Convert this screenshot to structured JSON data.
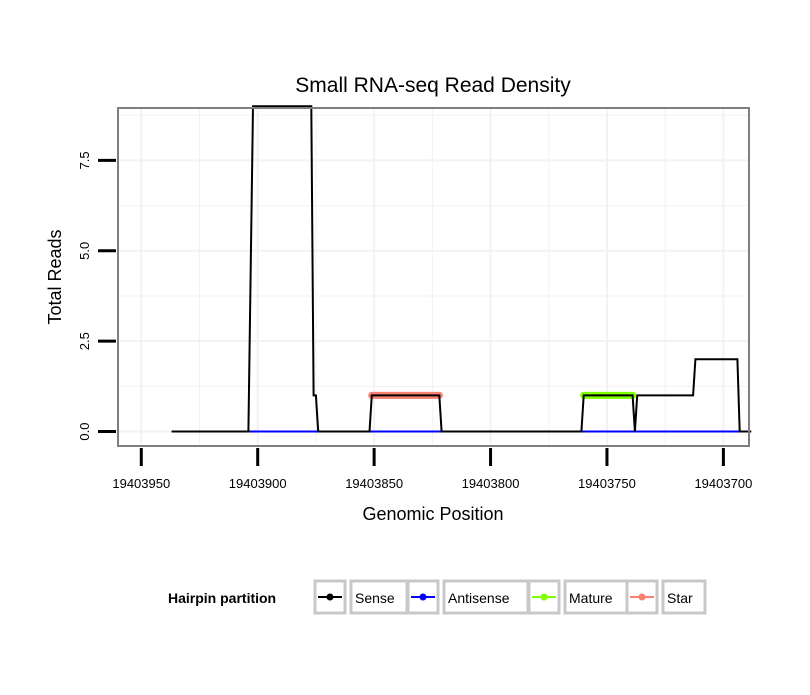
{
  "chart_data": {
    "type": "line",
    "title": "Small RNA-seq Read Density",
    "xlabel": "Genomic Position",
    "ylabel": "Total Reads",
    "x_reversed": true,
    "xlim": [
      19403960,
      19403689
    ],
    "ylim": [
      -0.4,
      8.95
    ],
    "x_ticks": [
      19403950,
      19403900,
      19403850,
      19403800,
      19403750,
      19403700
    ],
    "x_tick_labels": [
      "19403950",
      "19403900",
      "19403850",
      "19403800",
      "19403750",
      "19403700"
    ],
    "y_ticks": [
      0.0,
      2.5,
      5.0,
      7.5
    ],
    "y_tick_labels": [
      "0.0",
      "2.5",
      "5.0",
      "7.5"
    ],
    "grid": true,
    "series": [
      {
        "name": "Sense",
        "color": "#000000",
        "x": [
          19403937,
          19403904,
          19403902,
          19403877,
          19403876,
          19403875,
          19403874,
          19403852,
          19403851,
          19403822,
          19403821,
          19403761,
          19403760,
          19403739,
          19403738,
          19403737,
          19403736,
          19403713,
          19403712,
          19403694,
          19403693,
          19403688
        ],
        "y": [
          0,
          0,
          9,
          9,
          1,
          1,
          0,
          0,
          1,
          1,
          0,
          0,
          1,
          1,
          0,
          1,
          1,
          1,
          2,
          2,
          0,
          0
        ]
      },
      {
        "name": "Antisense",
        "color": "#0000ff",
        "x": [
          19403904,
          19403693
        ],
        "y": [
          0,
          0
        ]
      },
      {
        "name": "Mature",
        "color": "#7fff00",
        "x": [
          19403760,
          19403739
        ],
        "y": [
          1,
          1
        ]
      },
      {
        "name": "Star",
        "color": "#fa8072",
        "x": [
          19403851,
          19403822
        ],
        "y": [
          1,
          1
        ]
      }
    ],
    "legend": {
      "title": "Hairpin partition",
      "position": "bottom",
      "entries": [
        "Sense",
        "Antisense",
        "Mature",
        "Star"
      ]
    }
  }
}
